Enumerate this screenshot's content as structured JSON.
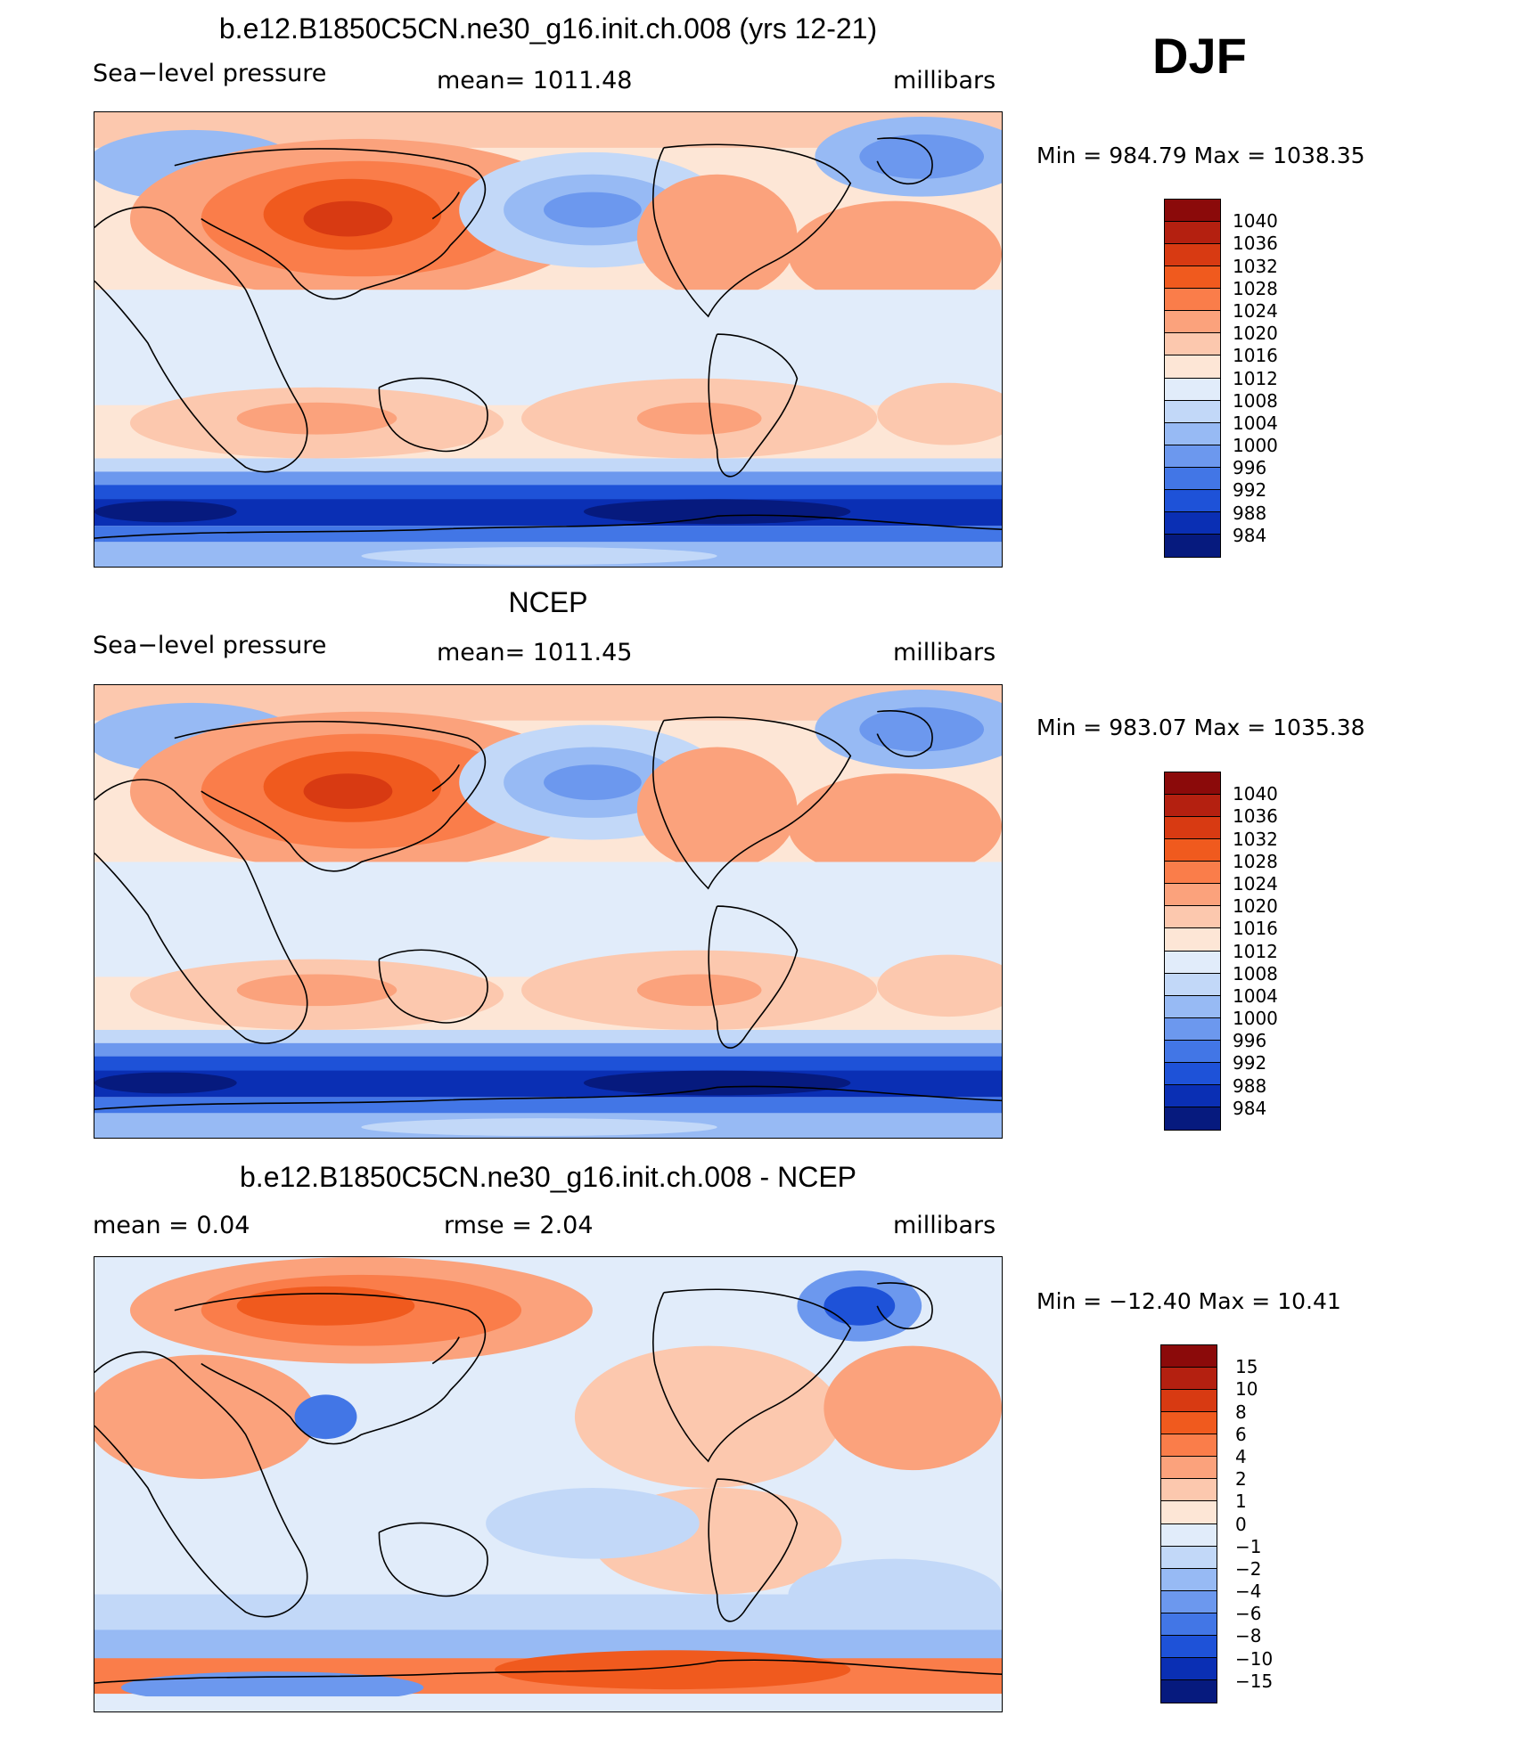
{
  "season": "DJF",
  "panels": [
    {
      "title": "b.e12.B1850C5CN.ne30_g16.init.ch.008 (yrs 12-21)",
      "left_label": "Sea−level pressure",
      "center_label": "mean=  1011.48",
      "units": "millibars",
      "minmax": "Min  =  984.79  Max  =  1038.35",
      "colorbar": {
        "levels": [
          "1040",
          "1036",
          "1032",
          "1028",
          "1024",
          "1020",
          "1016",
          "1012",
          "1008",
          "1004",
          "1000",
          "996",
          "992",
          "988",
          "984"
        ],
        "colors": [
          "#8b0a0a",
          "#b42010",
          "#d83a12",
          "#f05a1e",
          "#fa7d4a",
          "#fba27c",
          "#fcc8ae",
          "#fde6d6",
          "#e1ecfa",
          "#c2d8f8",
          "#97baf4",
          "#6c98ee",
          "#4276e6",
          "#1e52d8",
          "#0a2fb4",
          "#061a7e"
        ]
      },
      "map_style": "model"
    },
    {
      "title": "NCEP",
      "left_label": "Sea−level pressure",
      "center_label": "mean=  1011.45",
      "units": "millibars",
      "minmax": "Min  =  983.07  Max  =  1035.38",
      "colorbar": {
        "levels": [
          "1040",
          "1036",
          "1032",
          "1028",
          "1024",
          "1020",
          "1016",
          "1012",
          "1008",
          "1004",
          "1000",
          "996",
          "992",
          "988",
          "984"
        ],
        "colors": [
          "#8b0a0a",
          "#b42010",
          "#d83a12",
          "#f05a1e",
          "#fa7d4a",
          "#fba27c",
          "#fcc8ae",
          "#fde6d6",
          "#e1ecfa",
          "#c2d8f8",
          "#97baf4",
          "#6c98ee",
          "#4276e6",
          "#1e52d8",
          "#0a2fb4",
          "#061a7e"
        ]
      },
      "map_style": "obs"
    },
    {
      "title": "b.e12.B1850C5CN.ne30_g16.init.ch.008 - NCEP",
      "left_label": "mean  =     0.04",
      "center_label": "rmse  =     2.04",
      "units": "millibars",
      "minmax": "Min  =  −12.40  Max  =    10.41",
      "colorbar": {
        "levels": [
          "15",
          "10",
          "8",
          "6",
          "4",
          "2",
          "1",
          "0",
          "−1",
          "−2",
          "−4",
          "−6",
          "−8",
          "−10",
          "−15"
        ],
        "colors": [
          "#8b0a0a",
          "#b42010",
          "#d83a12",
          "#f05a1e",
          "#fa7d4a",
          "#fba27c",
          "#fcc8ae",
          "#fde6d6",
          "#e1ecfa",
          "#c2d8f8",
          "#97baf4",
          "#6c98ee",
          "#4276e6",
          "#1e52d8",
          "#0a2fb4",
          "#061a7e"
        ]
      },
      "map_style": "diff"
    }
  ]
}
